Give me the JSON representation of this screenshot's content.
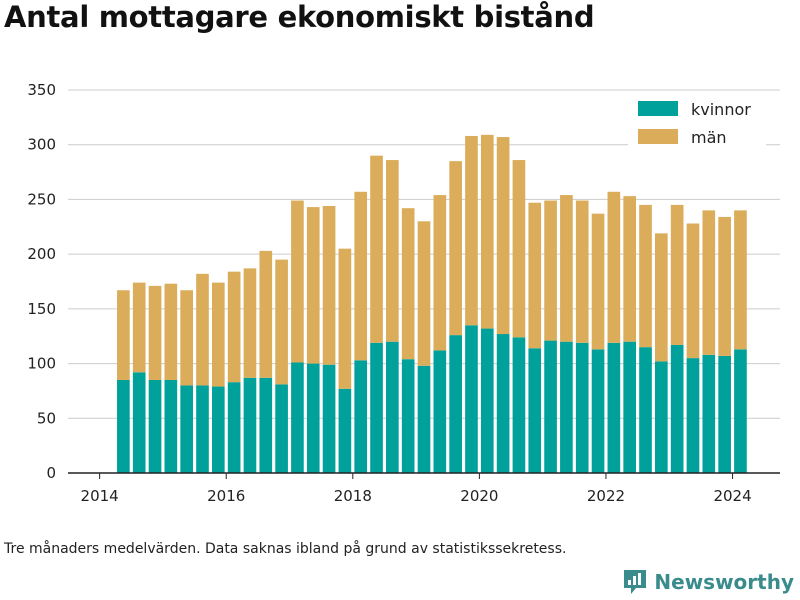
{
  "title": "Antal mottagare ekonomiskt bistånd",
  "footnote": "Tre månaders medelvärden. Data saknas ibland på grund av statistikssekretess.",
  "brand": "Newsworthy",
  "colors": {
    "kvinnor": "#00a19a",
    "man": "#dbad5b",
    "grid": "#cccccc",
    "axis": "#222222"
  },
  "chart_data": {
    "type": "bar",
    "stacked": true,
    "x_labels": [
      "2014",
      "2016",
      "2018",
      "2020",
      "2022",
      "2024"
    ],
    "x_label_values": [
      2014,
      2016,
      2018,
      2020,
      2022,
      2024
    ],
    "xlim": [
      2013.5,
      2024.75
    ],
    "ylim": [
      0,
      350
    ],
    "y_ticks": [
      0,
      50,
      100,
      150,
      200,
      250,
      300,
      350
    ],
    "grid": "horizontal",
    "legend_position": "top-right",
    "legend": [
      "kvinnor",
      "män"
    ],
    "x": [
      2014.375,
      2014.625,
      2014.875,
      2015.125,
      2015.375,
      2015.625,
      2015.875,
      2016.125,
      2016.375,
      2016.625,
      2016.875,
      2017.125,
      2017.375,
      2017.625,
      2017.875,
      2018.125,
      2018.375,
      2018.625,
      2018.875,
      2019.125,
      2019.375,
      2019.625,
      2019.875,
      2020.125,
      2020.375,
      2020.625,
      2020.875,
      2021.125,
      2021.375,
      2021.625,
      2021.875,
      2022.125,
      2022.375,
      2022.625,
      2022.875,
      2023.125,
      2023.375,
      2023.625,
      2023.875,
      2024.125
    ],
    "series": [
      {
        "name": "kvinnor",
        "values": [
          85,
          92,
          85,
          85,
          80,
          80,
          79,
          83,
          87,
          87,
          81,
          101,
          100,
          99,
          77,
          103,
          119,
          120,
          104,
          98,
          112,
          126,
          135,
          132,
          127,
          124,
          114,
          121,
          120,
          119,
          113,
          119,
          120,
          115,
          102,
          117,
          105,
          108,
          107,
          113
        ]
      },
      {
        "name": "män",
        "values": [
          82,
          82,
          86,
          88,
          87,
          102,
          95,
          101,
          100,
          116,
          114,
          148,
          143,
          145,
          128,
          154,
          171,
          166,
          138,
          132,
          142,
          159,
          173,
          177,
          180,
          162,
          133,
          128,
          134,
          130,
          124,
          138,
          133,
          130,
          117,
          128,
          123,
          132,
          127,
          127
        ]
      }
    ]
  }
}
